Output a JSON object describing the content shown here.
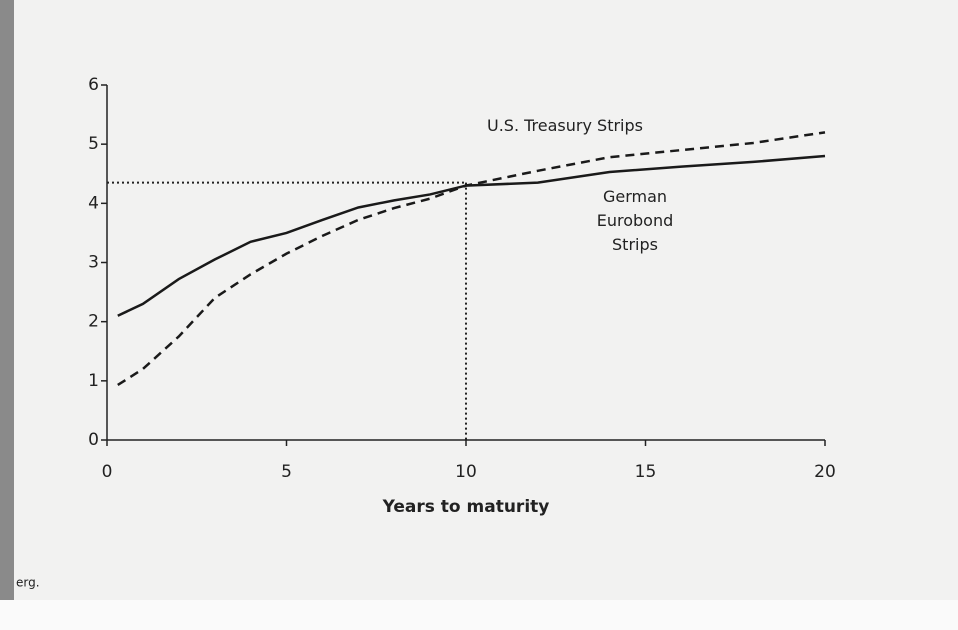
{
  "chart_data": {
    "type": "line",
    "x_label": "Years to maturity",
    "x": [
      0.3,
      1,
      2,
      3,
      4,
      5,
      6,
      7,
      8,
      9,
      10,
      12,
      14,
      16,
      18,
      20
    ],
    "series": [
      {
        "name": "U.S. Treasury Strips",
        "color": "#1a1a1a",
        "line_style": "dashed",
        "values": [
          0.93,
          1.2,
          1.75,
          2.4,
          2.8,
          3.15,
          3.45,
          3.72,
          3.92,
          4.08,
          4.3,
          4.55,
          4.78,
          4.9,
          5.02,
          5.2
        ]
      },
      {
        "name": "German Eurobond Strips",
        "color": "#1a1a1a",
        "line_style": "solid",
        "values": [
          2.1,
          2.3,
          2.72,
          3.05,
          3.35,
          3.5,
          3.72,
          3.93,
          4.05,
          4.15,
          4.3,
          4.35,
          4.53,
          4.62,
          4.7,
          4.8
        ]
      }
    ],
    "reference": {
      "x": 10,
      "y": 4.35
    },
    "xlim": [
      0,
      20
    ],
    "xticks": [
      0,
      5,
      10,
      15,
      20
    ],
    "ylim": [
      0,
      6
    ],
    "yticks": [
      0,
      1,
      2,
      3,
      4,
      5,
      6
    ],
    "page_fragment": "erg."
  }
}
